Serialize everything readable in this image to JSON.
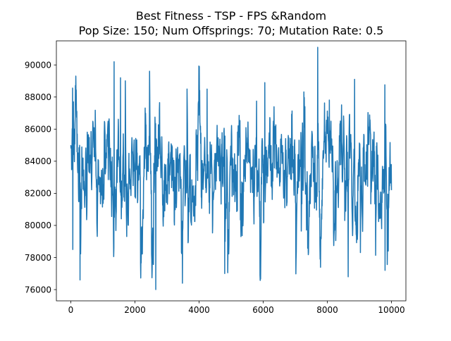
{
  "chart_data": {
    "type": "line",
    "title_line1": "Best Fitness - TSP - FPS &Random",
    "title_line2": "Pop Size: 150; Num Offsprings: 70; Mutation Rate: 0.5",
    "xlabel": "",
    "ylabel": "",
    "xlim": [
      -450,
      10450
    ],
    "ylim": [
      75300,
      91500
    ],
    "xticks": [
      0,
      2000,
      4000,
      6000,
      8000,
      10000
    ],
    "xtick_labels": [
      "0",
      "2000",
      "4000",
      "6000",
      "8000",
      "10000"
    ],
    "yticks": [
      76000,
      78000,
      80000,
      82000,
      84000,
      86000,
      88000,
      90000
    ],
    "ytick_labels": [
      "76000",
      "78000",
      "80000",
      "82000",
      "84000",
      "86000",
      "88000",
      "90000"
    ],
    "grid": false,
    "series": [
      {
        "name": "best_fitness",
        "color": "#1f77b4",
        "x_start": 0,
        "x_end": 10000,
        "num_points": 10001,
        "mean": 83300,
        "approx_min": 76000,
        "approx_max": 91100,
        "notable_points": [
          {
            "x": 0,
            "y": 85000
          },
          {
            "x": 60,
            "y": 78500
          },
          {
            "x": 80,
            "y": 87700
          },
          {
            "x": 290,
            "y": 76600
          },
          {
            "x": 1350,
            "y": 90200
          },
          {
            "x": 1550,
            "y": 89200
          },
          {
            "x": 2650,
            "y": 76000
          },
          {
            "x": 4250,
            "y": 88500
          },
          {
            "x": 4800,
            "y": 77000
          },
          {
            "x": 6050,
            "y": 88900
          },
          {
            "x": 7700,
            "y": 91100
          },
          {
            "x": 8650,
            "y": 76800
          },
          {
            "x": 8850,
            "y": 89100
          },
          {
            "x": 9800,
            "y": 77200
          },
          {
            "x": 10000,
            "y": 82200
          }
        ]
      }
    ]
  }
}
